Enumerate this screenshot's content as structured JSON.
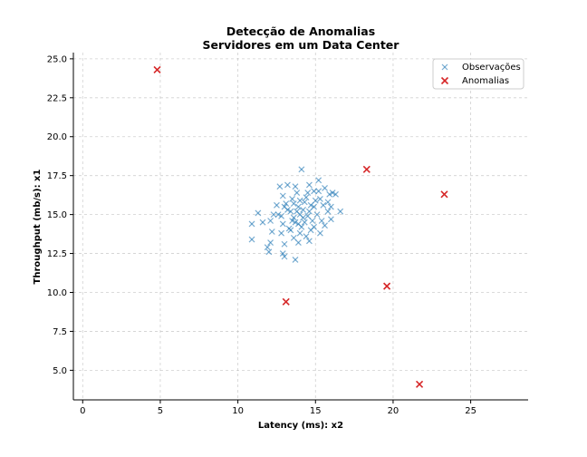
{
  "chart_data": {
    "type": "scatter",
    "title": "Detecção de Anomalias",
    "subtitle": "Servidores em um Data Center",
    "xlabel": "Latency (ms): x2",
    "ylabel": "Throughput (mb/s): x1",
    "xlim": [
      -0.6,
      28.7
    ],
    "ylim": [
      3.1,
      25.4
    ],
    "xticks": [
      0,
      5,
      10,
      15,
      20,
      25
    ],
    "yticks": [
      5.0,
      7.5,
      10.0,
      12.5,
      15.0,
      17.5,
      20.0,
      22.5,
      25.0
    ],
    "xtick_labels": [
      "0",
      "5",
      "10",
      "15",
      "20",
      "25"
    ],
    "ytick_labels": [
      "5.0",
      "7.5",
      "10.0",
      "12.5",
      "15.0",
      "17.5",
      "20.0",
      "22.5",
      "25.0"
    ],
    "grid": true,
    "legend_position": "top-right",
    "series": [
      {
        "name": "Observações",
        "color": "#1f77b4",
        "marker": "x",
        "points": [
          [
            14.1,
            17.9
          ],
          [
            13.2,
            16.9
          ],
          [
            12.7,
            16.8
          ],
          [
            15.2,
            17.2
          ],
          [
            14.6,
            16.9
          ],
          [
            15.6,
            16.7
          ],
          [
            16.1,
            16.4
          ],
          [
            15.9,
            16.3
          ],
          [
            14.9,
            16.5
          ],
          [
            13.8,
            16.4
          ],
          [
            12.9,
            16.2
          ],
          [
            13.5,
            16.0
          ],
          [
            14.4,
            16.1
          ],
          [
            15.3,
            16.0
          ],
          [
            16.3,
            16.3
          ],
          [
            15.8,
            15.8
          ],
          [
            14.0,
            15.9
          ],
          [
            13.1,
            15.7
          ],
          [
            12.5,
            15.6
          ],
          [
            13.9,
            15.5
          ],
          [
            14.7,
            15.6
          ],
          [
            15.5,
            15.6
          ],
          [
            16.0,
            15.5
          ],
          [
            14.2,
            15.3
          ],
          [
            13.4,
            15.2
          ],
          [
            12.3,
            15.0
          ],
          [
            12.8,
            14.9
          ],
          [
            13.6,
            14.8
          ],
          [
            14.5,
            14.9
          ],
          [
            15.1,
            15.0
          ],
          [
            15.8,
            15.2
          ],
          [
            16.6,
            15.2
          ],
          [
            14.8,
            14.6
          ],
          [
            13.7,
            14.5
          ],
          [
            12.9,
            14.4
          ],
          [
            12.1,
            14.6
          ],
          [
            11.6,
            14.5
          ],
          [
            11.3,
            15.1
          ],
          [
            10.9,
            14.4
          ],
          [
            13.3,
            14.1
          ],
          [
            14.1,
            14.2
          ],
          [
            14.9,
            14.2
          ],
          [
            15.6,
            14.3
          ],
          [
            16.0,
            14.7
          ],
          [
            15.3,
            13.8
          ],
          [
            14.4,
            13.6
          ],
          [
            13.6,
            13.5
          ],
          [
            12.8,
            13.8
          ],
          [
            12.2,
            13.9
          ],
          [
            13.9,
            13.2
          ],
          [
            14.6,
            13.3
          ],
          [
            13.0,
            13.1
          ],
          [
            12.1,
            13.2
          ],
          [
            11.9,
            12.9
          ],
          [
            12.0,
            12.6
          ],
          [
            12.9,
            12.5
          ],
          [
            13.0,
            12.3
          ],
          [
            13.7,
            12.1
          ],
          [
            10.9,
            13.4
          ],
          [
            14.0,
            13.8
          ],
          [
            14.3,
            14.5
          ],
          [
            14.0,
            15.0
          ],
          [
            13.8,
            15.2
          ],
          [
            14.2,
            14.8
          ],
          [
            13.5,
            14.6
          ],
          [
            14.6,
            15.2
          ],
          [
            13.2,
            15.3
          ],
          [
            14.9,
            15.5
          ],
          [
            13.6,
            15.7
          ],
          [
            14.3,
            15.8
          ],
          [
            15.0,
            15.9
          ],
          [
            13.9,
            14.4
          ],
          [
            14.7,
            14.0
          ],
          [
            13.4,
            14.0
          ],
          [
            15.4,
            14.6
          ],
          [
            12.6,
            15.0
          ],
          [
            13.0,
            15.5
          ],
          [
            14.5,
            16.4
          ],
          [
            15.2,
            16.5
          ],
          [
            13.7,
            16.8
          ]
        ]
      },
      {
        "name": "Anomalias",
        "color": "#d62728",
        "marker": "x",
        "points": [
          [
            4.8,
            24.3
          ],
          [
            18.3,
            17.9
          ],
          [
            23.3,
            16.3
          ],
          [
            13.1,
            9.4
          ],
          [
            19.6,
            10.4
          ],
          [
            21.7,
            4.1
          ]
        ]
      }
    ]
  }
}
